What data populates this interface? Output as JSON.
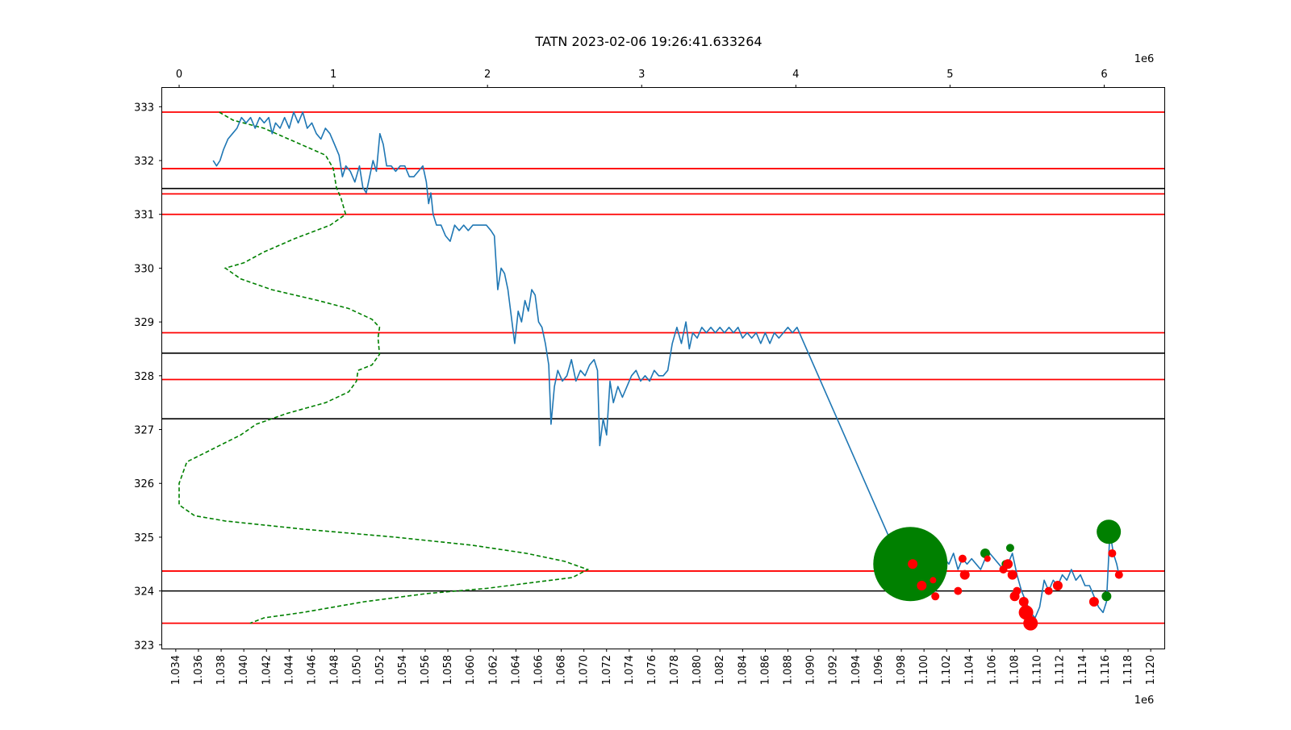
{
  "chart_data": {
    "type": "line",
    "title": "TATN 2023-02-06 19:26:41.633264",
    "xlabel": "",
    "ylabel": "",
    "bottom_axis": {
      "range": [
        1.0328,
        1.1212
      ],
      "ticks": [
        1.034,
        1.036,
        1.038,
        1.04,
        1.042,
        1.044,
        1.046,
        1.048,
        1.05,
        1.052,
        1.054,
        1.056,
        1.058,
        1.06,
        1.062,
        1.064,
        1.066,
        1.068,
        1.07,
        1.072,
        1.074,
        1.076,
        1.078,
        1.08,
        1.082,
        1.084,
        1.086,
        1.088,
        1.09,
        1.092,
        1.094,
        1.096,
        1.098,
        1.1,
        1.102,
        1.104,
        1.106,
        1.108,
        1.11,
        1.112,
        1.114,
        1.116,
        1.118,
        1.12
      ],
      "tick_labels": [
        "1.034",
        "1.036",
        "1.038",
        "1.040",
        "1.042",
        "1.044",
        "1.046",
        "1.048",
        "1.050",
        "1.052",
        "1.054",
        "1.056",
        "1.058",
        "1.060",
        "1.062",
        "1.064",
        "1.066",
        "1.068",
        "1.070",
        "1.072",
        "1.074",
        "1.076",
        "1.078",
        "1.080",
        "1.082",
        "1.084",
        "1.086",
        "1.088",
        "1.090",
        "1.092",
        "1.094",
        "1.096",
        "1.098",
        "1.100",
        "1.102",
        "1.104",
        "1.106",
        "1.108",
        "1.110",
        "1.112",
        "1.114",
        "1.116",
        "1.118",
        "1.120"
      ],
      "multiplier": "1e6"
    },
    "top_axis": {
      "range": [
        -0.11,
        6.39
      ],
      "ticks": [
        0,
        1,
        2,
        3,
        4,
        5,
        6
      ],
      "tick_labels": [
        "0",
        "1",
        "2",
        "3",
        "4",
        "5",
        "6"
      ],
      "multiplier": "1e6"
    },
    "y_axis": {
      "range": [
        322.93,
        333.35
      ],
      "ticks": [
        323,
        324,
        325,
        326,
        327,
        328,
        329,
        330,
        331,
        332,
        333
      ],
      "tick_labels": [
        "323",
        "324",
        "325",
        "326",
        "327",
        "328",
        "329",
        "330",
        "331",
        "332",
        "333"
      ]
    },
    "grid": false,
    "red_levels": [
      332.9,
      331.85,
      331.38,
      331.0,
      328.8,
      327.93,
      324.37,
      323.4
    ],
    "black_levels": [
      331.48,
      328.42,
      327.2,
      324.0
    ],
    "price_series": {
      "name": "",
      "color": "#1f77b4",
      "points": [
        [
          1.0373,
          332.0
        ],
        [
          1.0376,
          331.9
        ],
        [
          1.0379,
          332.0
        ],
        [
          1.0382,
          332.2
        ],
        [
          1.0386,
          332.4
        ],
        [
          1.039,
          332.5
        ],
        [
          1.0394,
          332.6
        ],
        [
          1.0398,
          332.8
        ],
        [
          1.0402,
          332.7
        ],
        [
          1.0406,
          332.8
        ],
        [
          1.041,
          332.6
        ],
        [
          1.0414,
          332.8
        ],
        [
          1.0418,
          332.7
        ],
        [
          1.0422,
          332.8
        ],
        [
          1.0425,
          332.5
        ],
        [
          1.0428,
          332.7
        ],
        [
          1.0432,
          332.6
        ],
        [
          1.0436,
          332.8
        ],
        [
          1.044,
          332.6
        ],
        [
          1.0444,
          332.9
        ],
        [
          1.0448,
          332.7
        ],
        [
          1.0452,
          332.9
        ],
        [
          1.0456,
          332.6
        ],
        [
          1.046,
          332.7
        ],
        [
          1.0464,
          332.5
        ],
        [
          1.0468,
          332.4
        ],
        [
          1.0472,
          332.6
        ],
        [
          1.0476,
          332.5
        ],
        [
          1.048,
          332.3
        ],
        [
          1.0484,
          332.1
        ],
        [
          1.0487,
          331.7
        ],
        [
          1.049,
          331.9
        ],
        [
          1.0494,
          331.8
        ],
        [
          1.0498,
          331.6
        ],
        [
          1.0502,
          331.9
        ],
        [
          1.0505,
          331.5
        ],
        [
          1.0508,
          331.4
        ],
        [
          1.0511,
          331.7
        ],
        [
          1.0514,
          332.0
        ],
        [
          1.0517,
          331.8
        ],
        [
          1.052,
          332.5
        ],
        [
          1.0523,
          332.3
        ],
        [
          1.0526,
          331.9
        ],
        [
          1.053,
          331.9
        ],
        [
          1.0534,
          331.8
        ],
        [
          1.0538,
          331.9
        ],
        [
          1.0542,
          331.9
        ],
        [
          1.0546,
          331.7
        ],
        [
          1.055,
          331.7
        ],
        [
          1.0554,
          331.8
        ],
        [
          1.0558,
          331.9
        ],
        [
          1.0561,
          331.6
        ],
        [
          1.0563,
          331.2
        ],
        [
          1.0565,
          331.4
        ],
        [
          1.0567,
          331.0
        ],
        [
          1.057,
          330.8
        ],
        [
          1.0574,
          330.8
        ],
        [
          1.0578,
          330.6
        ],
        [
          1.0582,
          330.5
        ],
        [
          1.0586,
          330.8
        ],
        [
          1.059,
          330.7
        ],
        [
          1.0594,
          330.8
        ],
        [
          1.0598,
          330.7
        ],
        [
          1.0602,
          330.8
        ],
        [
          1.0606,
          330.8
        ],
        [
          1.061,
          330.8
        ],
        [
          1.0614,
          330.8
        ],
        [
          1.0618,
          330.7
        ],
        [
          1.0621,
          330.6
        ],
        [
          1.0624,
          329.6
        ],
        [
          1.0627,
          330.0
        ],
        [
          1.063,
          329.9
        ],
        [
          1.0633,
          329.6
        ],
        [
          1.0636,
          329.1
        ],
        [
          1.0639,
          328.6
        ],
        [
          1.0642,
          329.2
        ],
        [
          1.0645,
          329.0
        ],
        [
          1.0648,
          329.4
        ],
        [
          1.0651,
          329.2
        ],
        [
          1.0654,
          329.6
        ],
        [
          1.0657,
          329.5
        ],
        [
          1.066,
          329.0
        ],
        [
          1.0663,
          328.9
        ],
        [
          1.0666,
          328.6
        ],
        [
          1.0669,
          328.2
        ],
        [
          1.0671,
          327.1
        ],
        [
          1.0674,
          327.8
        ],
        [
          1.0677,
          328.1
        ],
        [
          1.0681,
          327.9
        ],
        [
          1.0685,
          328.0
        ],
        [
          1.0689,
          328.3
        ],
        [
          1.0693,
          327.9
        ],
        [
          1.0697,
          328.1
        ],
        [
          1.0701,
          328.0
        ],
        [
          1.0705,
          328.2
        ],
        [
          1.0709,
          328.3
        ],
        [
          1.0712,
          328.1
        ],
        [
          1.0714,
          326.7
        ],
        [
          1.0717,
          327.2
        ],
        [
          1.072,
          326.9
        ],
        [
          1.0723,
          327.9
        ],
        [
          1.0726,
          327.5
        ],
        [
          1.073,
          327.8
        ],
        [
          1.0734,
          327.6
        ],
        [
          1.0738,
          327.8
        ],
        [
          1.0742,
          328.0
        ],
        [
          1.0746,
          328.1
        ],
        [
          1.075,
          327.9
        ],
        [
          1.0754,
          328.0
        ],
        [
          1.0758,
          327.9
        ],
        [
          1.0762,
          328.1
        ],
        [
          1.0766,
          328.0
        ],
        [
          1.077,
          328.0
        ],
        [
          1.0774,
          328.1
        ],
        [
          1.0778,
          328.6
        ],
        [
          1.0782,
          328.9
        ],
        [
          1.0786,
          328.6
        ],
        [
          1.079,
          329.0
        ],
        [
          1.0793,
          328.5
        ],
        [
          1.0796,
          328.8
        ],
        [
          1.08,
          328.7
        ],
        [
          1.0804,
          328.9
        ],
        [
          1.0808,
          328.8
        ],
        [
          1.0812,
          328.9
        ],
        [
          1.0816,
          328.8
        ],
        [
          1.082,
          328.9
        ],
        [
          1.0824,
          328.8
        ],
        [
          1.0828,
          328.9
        ],
        [
          1.0832,
          328.8
        ],
        [
          1.0836,
          328.9
        ],
        [
          1.084,
          328.7
        ],
        [
          1.0844,
          328.8
        ],
        [
          1.0848,
          328.7
        ],
        [
          1.0852,
          328.8
        ],
        [
          1.0856,
          328.6
        ],
        [
          1.086,
          328.8
        ],
        [
          1.0864,
          328.6
        ],
        [
          1.0868,
          328.8
        ],
        [
          1.0872,
          328.7
        ],
        [
          1.0876,
          328.8
        ],
        [
          1.088,
          328.9
        ],
        [
          1.0884,
          328.8
        ],
        [
          1.0888,
          328.9
        ],
        [
          1.099,
          324.0
        ],
        [
          1.0994,
          324.4
        ],
        [
          1.0998,
          324.1
        ],
        [
          1.1002,
          324.6
        ],
        [
          1.1006,
          324.3
        ],
        [
          1.101,
          324.0
        ],
        [
          1.1014,
          324.2
        ],
        [
          1.1018,
          324.6
        ],
        [
          1.1022,
          324.5
        ],
        [
          1.1026,
          324.7
        ],
        [
          1.103,
          324.4
        ],
        [
          1.1034,
          324.6
        ],
        [
          1.1038,
          324.5
        ],
        [
          1.1042,
          324.6
        ],
        [
          1.1046,
          324.5
        ],
        [
          1.105,
          324.4
        ],
        [
          1.1054,
          324.6
        ],
        [
          1.1058,
          324.7
        ],
        [
          1.1062,
          324.6
        ],
        [
          1.1066,
          324.5
        ],
        [
          1.107,
          324.4
        ],
        [
          1.1074,
          324.5
        ],
        [
          1.1078,
          324.7
        ],
        [
          1.1082,
          324.3
        ],
        [
          1.1086,
          324.0
        ],
        [
          1.109,
          323.8
        ],
        [
          1.1094,
          323.6
        ],
        [
          1.1098,
          323.5
        ],
        [
          1.1102,
          323.7
        ],
        [
          1.1106,
          324.2
        ],
        [
          1.111,
          324.0
        ],
        [
          1.1114,
          324.2
        ],
        [
          1.1118,
          324.1
        ],
        [
          1.1122,
          324.3
        ],
        [
          1.1126,
          324.2
        ],
        [
          1.113,
          324.4
        ],
        [
          1.1134,
          324.2
        ],
        [
          1.1138,
          324.3
        ],
        [
          1.1142,
          324.1
        ],
        [
          1.1146,
          324.1
        ],
        [
          1.115,
          323.9
        ],
        [
          1.1154,
          323.7
        ],
        [
          1.1158,
          323.6
        ],
        [
          1.1161,
          323.8
        ],
        [
          1.1164,
          325.1
        ],
        [
          1.1167,
          324.7
        ],
        [
          1.117,
          324.5
        ],
        [
          1.1172,
          324.3
        ]
      ]
    },
    "volume_profile": {
      "color": "green",
      "style": "dashed",
      "points": [
        [
          0.26,
          332.9
        ],
        [
          0.35,
          332.75
        ],
        [
          0.55,
          332.6
        ],
        [
          0.75,
          332.35
        ],
        [
          0.95,
          332.1
        ],
        [
          1.0,
          331.85
        ],
        [
          1.02,
          331.5
        ],
        [
          1.05,
          331.3
        ],
        [
          1.08,
          331.0
        ],
        [
          0.98,
          330.8
        ],
        [
          0.75,
          330.55
        ],
        [
          0.55,
          330.3
        ],
        [
          0.42,
          330.1
        ],
        [
          0.3,
          330.0
        ],
        [
          0.4,
          329.8
        ],
        [
          0.6,
          329.6
        ],
        [
          0.9,
          329.4
        ],
        [
          1.1,
          329.25
        ],
        [
          1.25,
          329.05
        ],
        [
          1.3,
          328.9
        ],
        [
          1.29,
          328.7
        ],
        [
          1.3,
          328.4
        ],
        [
          1.25,
          328.2
        ],
        [
          1.16,
          328.1
        ],
        [
          1.15,
          327.9
        ],
        [
          1.1,
          327.7
        ],
        [
          0.95,
          327.5
        ],
        [
          0.7,
          327.3
        ],
        [
          0.5,
          327.1
        ],
        [
          0.4,
          326.9
        ],
        [
          0.05,
          326.4
        ],
        [
          0.0,
          326.0
        ],
        [
          0.0,
          325.6
        ],
        [
          0.1,
          325.4
        ],
        [
          0.3,
          325.3
        ],
        [
          0.8,
          325.15
        ],
        [
          1.4,
          325.0
        ],
        [
          1.9,
          324.85
        ],
        [
          2.25,
          324.7
        ],
        [
          2.5,
          324.55
        ],
        [
          2.65,
          324.4
        ],
        [
          2.55,
          324.25
        ],
        [
          2.0,
          324.05
        ],
        [
          1.6,
          323.95
        ],
        [
          1.2,
          323.8
        ],
        [
          0.8,
          323.6
        ],
        [
          0.55,
          323.5
        ],
        [
          0.46,
          323.4
        ]
      ]
    },
    "markers": [
      {
        "x": 1.0988,
        "y": 324.5,
        "size": 46,
        "color": "green"
      },
      {
        "x": 1.1163,
        "y": 325.1,
        "size": 15,
        "color": "green"
      },
      {
        "x": 1.1054,
        "y": 324.7,
        "size": 6,
        "color": "green"
      },
      {
        "x": 1.1076,
        "y": 324.8,
        "size": 5,
        "color": "green"
      },
      {
        "x": 1.1072,
        "y": 324.5,
        "size": 5,
        "color": "green"
      },
      {
        "x": 1.1161,
        "y": 323.9,
        "size": 6,
        "color": "green"
      },
      {
        "x": 1.099,
        "y": 324.5,
        "size": 6,
        "color": "red"
      },
      {
        "x": 1.0998,
        "y": 324.1,
        "size": 6,
        "color": "red"
      },
      {
        "x": 1.1008,
        "y": 324.2,
        "size": 4,
        "color": "red"
      },
      {
        "x": 1.101,
        "y": 323.9,
        "size": 5,
        "color": "red"
      },
      {
        "x": 1.103,
        "y": 324.0,
        "size": 5,
        "color": "red"
      },
      {
        "x": 1.1034,
        "y": 324.6,
        "size": 5,
        "color": "red"
      },
      {
        "x": 1.1036,
        "y": 324.3,
        "size": 6,
        "color": "red"
      },
      {
        "x": 1.1056,
        "y": 324.6,
        "size": 4,
        "color": "red"
      },
      {
        "x": 1.107,
        "y": 324.4,
        "size": 5,
        "color": "red"
      },
      {
        "x": 1.1074,
        "y": 324.5,
        "size": 6,
        "color": "red"
      },
      {
        "x": 1.1078,
        "y": 324.3,
        "size": 6,
        "color": "red"
      },
      {
        "x": 1.108,
        "y": 323.9,
        "size": 6,
        "color": "red"
      },
      {
        "x": 1.1082,
        "y": 324.0,
        "size": 5,
        "color": "red"
      },
      {
        "x": 1.1088,
        "y": 323.8,
        "size": 6,
        "color": "red"
      },
      {
        "x": 1.109,
        "y": 323.6,
        "size": 9,
        "color": "red"
      },
      {
        "x": 1.1094,
        "y": 323.4,
        "size": 9,
        "color": "red"
      },
      {
        "x": 1.111,
        "y": 324.0,
        "size": 5,
        "color": "red"
      },
      {
        "x": 1.1118,
        "y": 324.1,
        "size": 6,
        "color": "red"
      },
      {
        "x": 1.115,
        "y": 323.8,
        "size": 6,
        "color": "red"
      },
      {
        "x": 1.1166,
        "y": 324.7,
        "size": 5,
        "color": "red"
      },
      {
        "x": 1.1172,
        "y": 324.3,
        "size": 5,
        "color": "red"
      }
    ]
  }
}
